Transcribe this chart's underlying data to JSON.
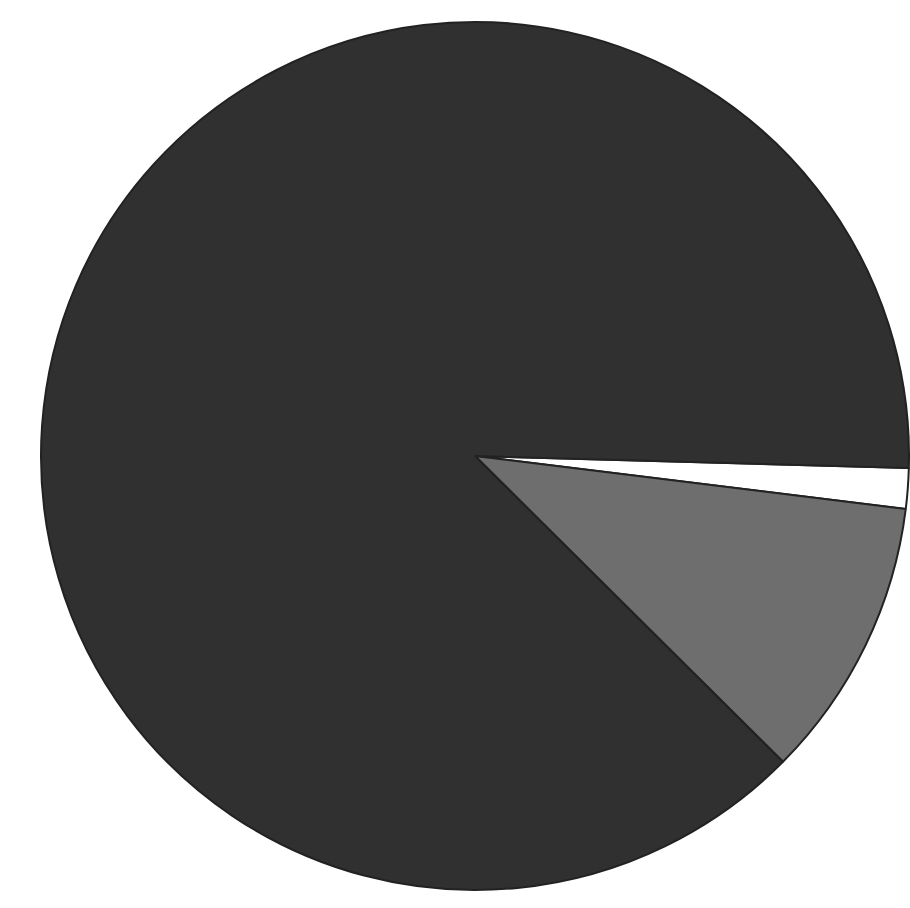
{
  "chart_data": {
    "type": "pie",
    "categories": [
      null,
      null,
      null
    ],
    "values": [
      1.5,
      10.5,
      88
    ],
    "colors": [
      "#ffffff",
      "#6e6e6e",
      "#303030"
    ]
  }
}
